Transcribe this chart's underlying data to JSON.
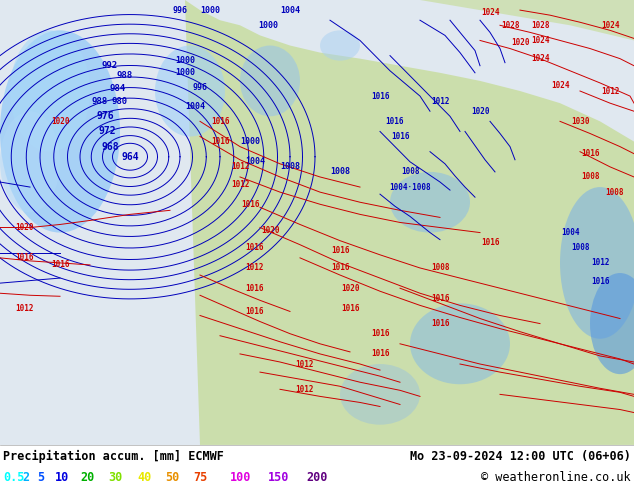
{
  "title_left": "Precipitation accum. [mm] ECMWF",
  "title_right": "Mo 23-09-2024 12:00 UTC (06+06)",
  "copyright": "© weatheronline.co.uk",
  "legend_values": [
    "0.5",
    "2",
    "5",
    "10",
    "20",
    "30",
    "40",
    "50",
    "75",
    "100",
    "150",
    "200"
  ],
  "legend_colors": [
    "#00ffff",
    "#00b0ff",
    "#0050ff",
    "#0000e0",
    "#00b000",
    "#80e000",
    "#e8e800",
    "#e89000",
    "#e84000",
    "#e000e0",
    "#a000e0",
    "#600080"
  ],
  "bg_color": "#e8e8e8",
  "map_bg": "#dde8f0",
  "fig_width": 6.34,
  "fig_height": 4.9,
  "bottom_bar_color": "#ffffff",
  "text_color": "#000000",
  "title_fontsize": 8.5,
  "legend_fontsize": 8.5,
  "land_color": "#c8dda0",
  "ocean_color": "#b8d0e8",
  "precip_light_blue": "#90c8f0",
  "precip_blue": "#50a8e8",
  "precip_dark_blue": "#2080d0",
  "low_line_color": "#0000bb",
  "high_line_color": "#cc0000"
}
